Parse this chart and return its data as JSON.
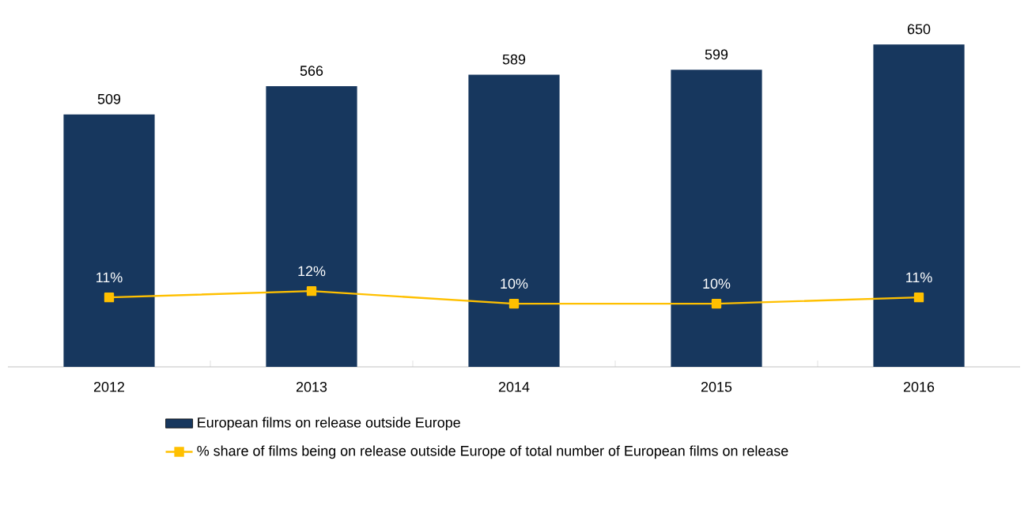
{
  "chart_data": {
    "type": "bar",
    "categories": [
      "2012",
      "2013",
      "2014",
      "2015",
      "2016"
    ],
    "legend": "bottom",
    "series": [
      {
        "name": "European films on release outside Europe",
        "color": "#17375e",
        "values": [
          509,
          566,
          589,
          599,
          650
        ],
        "value_labels": [
          "509",
          "566",
          "589",
          "599",
          "650"
        ]
      },
      {
        "name": "% share of films being on release outside Europe of total number of European films on release",
        "type": "line",
        "axis": "y2",
        "color": "#ffc000",
        "marker": "square",
        "values": [
          11,
          12,
          10,
          10,
          11
        ],
        "value_labels": [
          "11%",
          "12%",
          "10%",
          "10%",
          "11%"
        ]
      }
    ]
  }
}
